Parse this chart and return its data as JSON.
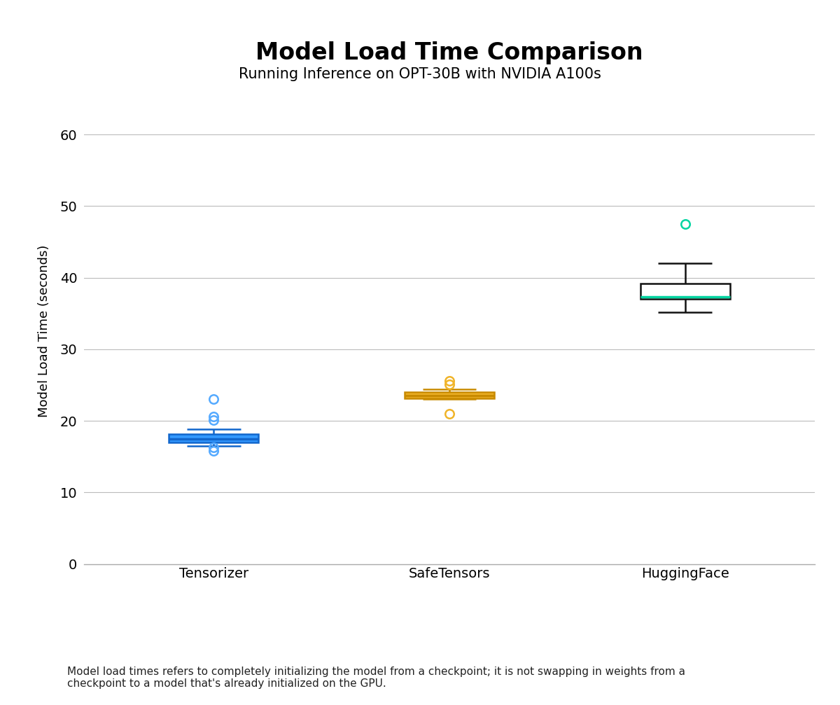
{
  "title": "Model Load Time Comparison",
  "subtitle": "Running Inference on OPT-30B with NVIDIA A100s",
  "ylabel": "Model Load Time (seconds)",
  "footnote": "Model load times refers to completely initializing the model from a checkpoint; it is not swapping in weights from a\ncheckpoint to a model that's already initialized on the GPU.",
  "categories": [
    "Tensorizer",
    "SafeTensors",
    "HuggingFace"
  ],
  "ylim": [
    0,
    65
  ],
  "yticks": [
    0,
    10,
    20,
    30,
    40,
    50,
    60
  ],
  "boxplot_data": {
    "Tensorizer": {
      "q1": 17.0,
      "median": 17.5,
      "q3": 18.2,
      "whisker_low": 16.5,
      "whisker_high": 18.8,
      "fliers": [
        15.8,
        16.3,
        20.1,
        20.6,
        23.0
      ],
      "box_facecolor": "#3399ff",
      "box_edgecolor": "#1166cc",
      "median_color": "#1166cc",
      "flier_color": "#55aaff"
    },
    "SafeTensors": {
      "q1": 23.1,
      "median": 23.5,
      "q3": 24.0,
      "whisker_low": 23.0,
      "whisker_high": 24.4,
      "fliers": [
        21.0,
        25.1,
        25.6
      ],
      "box_facecolor": "#f0b429",
      "box_edgecolor": "#c88a00",
      "median_color": "#c88a00",
      "flier_color": "#f0b429"
    },
    "HuggingFace": {
      "q1": 37.0,
      "median": 37.3,
      "q3": 39.2,
      "whisker_low": 35.2,
      "whisker_high": 42.0,
      "fliers": [
        47.5
      ],
      "box_facecolor": "#ffffff",
      "box_edgecolor": "#111111",
      "median_color": "#00d4a0",
      "flier_color": "#00d4a0"
    }
  },
  "background_color": "#ffffff",
  "grid_color": "#bbbbbb",
  "title_fontsize": 24,
  "subtitle_fontsize": 15,
  "axis_label_fontsize": 13,
  "tick_fontsize": 14,
  "footnote_fontsize": 11,
  "box_width": 0.38,
  "cap_ratio": 0.6
}
